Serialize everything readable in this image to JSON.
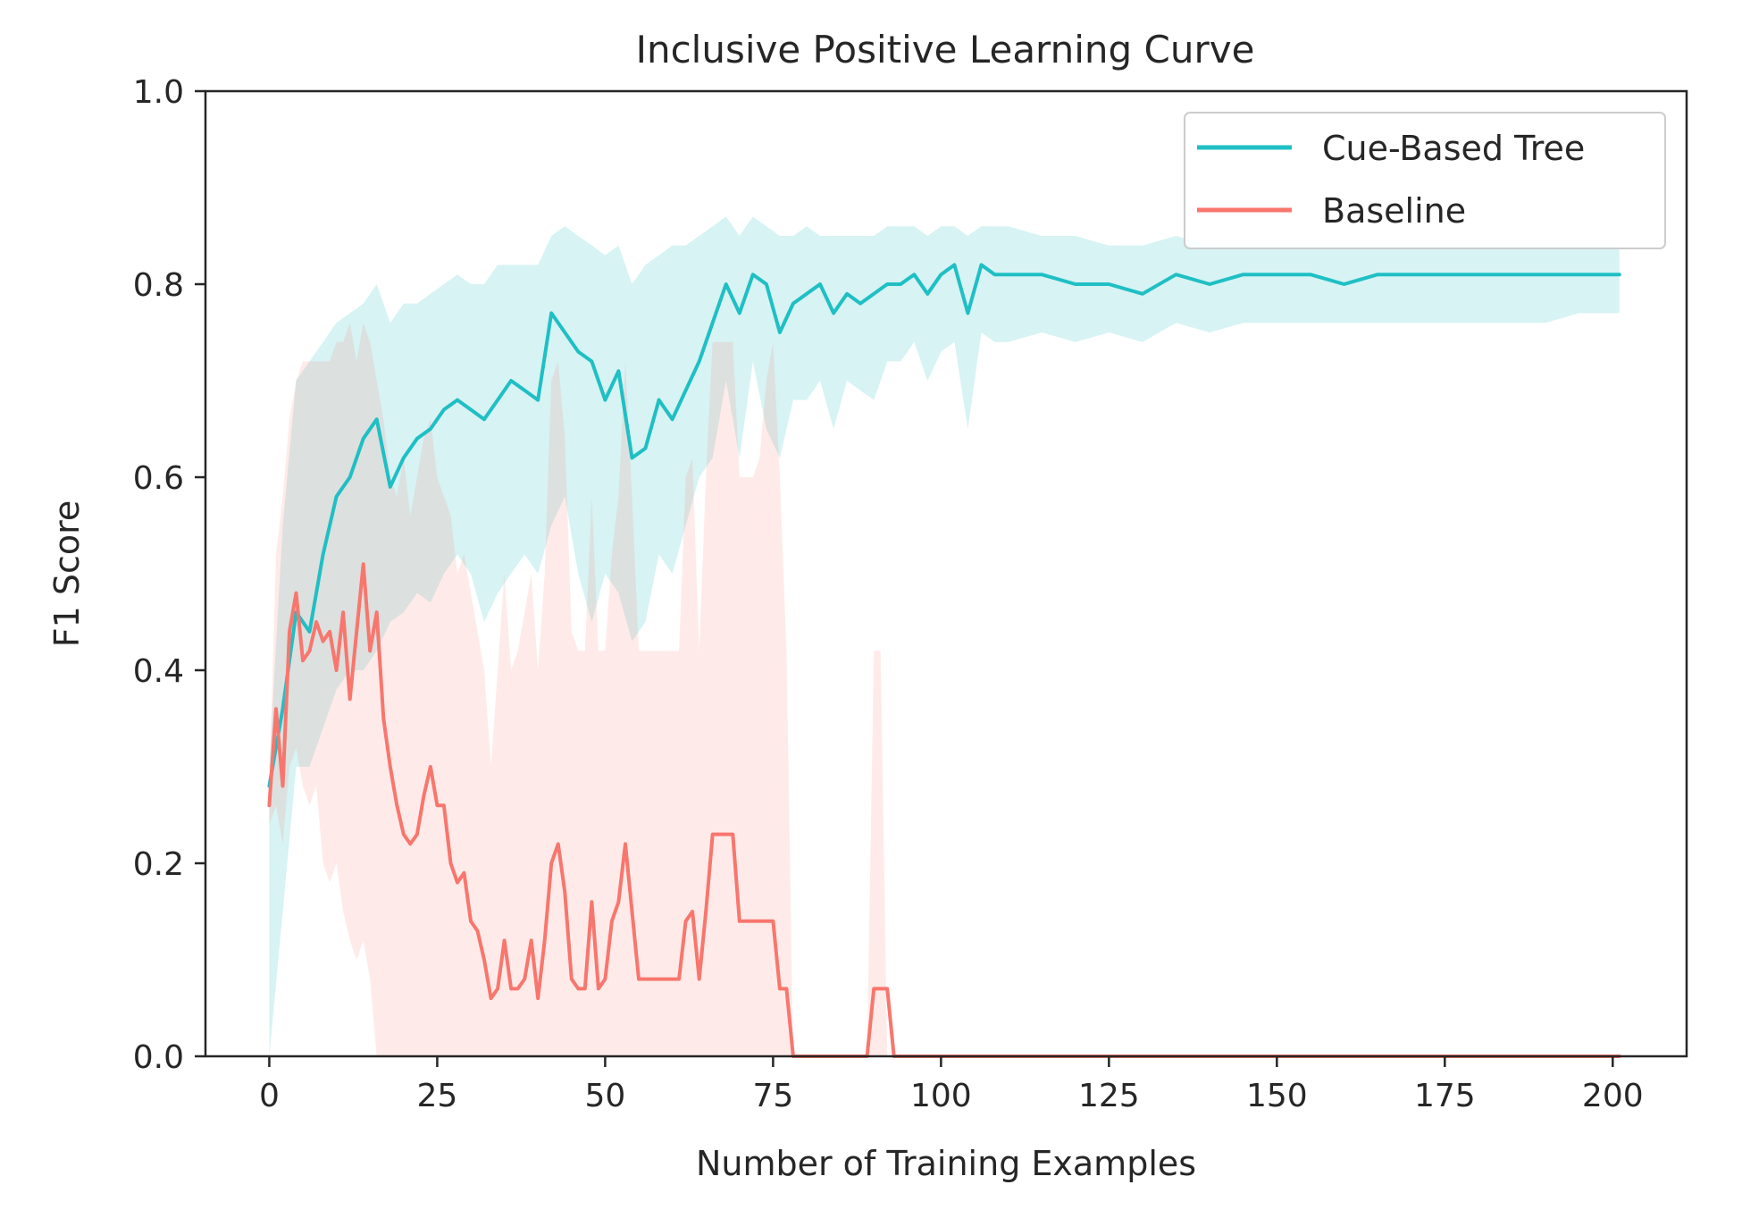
{
  "chart_data": {
    "type": "line",
    "title": "Inclusive Positive Learning Curve",
    "xlabel": "Number of Training Examples",
    "ylabel": "F1 Score",
    "xlim": [
      -9.5,
      211
    ],
    "ylim": [
      0.0,
      1.0
    ],
    "xticks": [
      0,
      25,
      50,
      75,
      100,
      125,
      150,
      175,
      200
    ],
    "yticks": [
      0.0,
      0.2,
      0.4,
      0.6,
      0.8,
      1.0
    ],
    "xtick_labels": [
      "0",
      "25",
      "50",
      "75",
      "100",
      "125",
      "150",
      "175",
      "200"
    ],
    "ytick_labels": [
      "0.0",
      "0.2",
      "0.4",
      "0.6",
      "0.8",
      "1.0"
    ],
    "grid": false,
    "legend_position": "top-right",
    "series": [
      {
        "name": "Cue-Based Tree",
        "color": "#1fbfc4",
        "band_opacity": 0.18,
        "x": [
          0,
          2,
          4,
          6,
          8,
          10,
          12,
          14,
          16,
          18,
          20,
          22,
          24,
          26,
          28,
          30,
          32,
          34,
          36,
          38,
          40,
          42,
          44,
          46,
          48,
          50,
          52,
          54,
          56,
          58,
          60,
          62,
          64,
          66,
          68,
          70,
          72,
          74,
          76,
          78,
          80,
          82,
          84,
          86,
          88,
          90,
          92,
          94,
          96,
          98,
          100,
          102,
          104,
          106,
          108,
          110,
          115,
          120,
          125,
          130,
          135,
          140,
          145,
          150,
          155,
          160,
          165,
          170,
          175,
          180,
          185,
          190,
          195,
          201
        ],
        "y": [
          0.28,
          0.36,
          0.46,
          0.44,
          0.52,
          0.58,
          0.6,
          0.64,
          0.66,
          0.59,
          0.62,
          0.64,
          0.65,
          0.67,
          0.68,
          0.67,
          0.66,
          0.68,
          0.7,
          0.69,
          0.68,
          0.77,
          0.75,
          0.73,
          0.72,
          0.68,
          0.71,
          0.62,
          0.63,
          0.68,
          0.66,
          0.69,
          0.72,
          0.76,
          0.8,
          0.77,
          0.81,
          0.8,
          0.75,
          0.78,
          0.79,
          0.8,
          0.77,
          0.79,
          0.78,
          0.79,
          0.8,
          0.8,
          0.81,
          0.79,
          0.81,
          0.82,
          0.77,
          0.82,
          0.81,
          0.81,
          0.81,
          0.8,
          0.8,
          0.79,
          0.81,
          0.8,
          0.81,
          0.81,
          0.81,
          0.8,
          0.81,
          0.81,
          0.81,
          0.81,
          0.81,
          0.81,
          0.81,
          0.81
        ],
        "lower": [
          0.0,
          0.15,
          0.3,
          0.3,
          0.34,
          0.38,
          0.4,
          0.4,
          0.42,
          0.45,
          0.46,
          0.48,
          0.47,
          0.5,
          0.52,
          0.5,
          0.45,
          0.48,
          0.5,
          0.52,
          0.5,
          0.55,
          0.58,
          0.5,
          0.45,
          0.5,
          0.48,
          0.43,
          0.45,
          0.52,
          0.5,
          0.55,
          0.6,
          0.62,
          0.7,
          0.62,
          0.72,
          0.65,
          0.62,
          0.68,
          0.68,
          0.7,
          0.65,
          0.7,
          0.69,
          0.68,
          0.72,
          0.72,
          0.74,
          0.7,
          0.73,
          0.74,
          0.65,
          0.75,
          0.74,
          0.74,
          0.75,
          0.74,
          0.75,
          0.74,
          0.76,
          0.75,
          0.76,
          0.76,
          0.76,
          0.76,
          0.76,
          0.76,
          0.76,
          0.76,
          0.76,
          0.76,
          0.77,
          0.77
        ],
        "upper": [
          0.3,
          0.55,
          0.7,
          0.72,
          0.74,
          0.76,
          0.77,
          0.78,
          0.8,
          0.76,
          0.78,
          0.78,
          0.79,
          0.8,
          0.81,
          0.8,
          0.8,
          0.82,
          0.82,
          0.82,
          0.82,
          0.85,
          0.86,
          0.85,
          0.84,
          0.83,
          0.84,
          0.8,
          0.82,
          0.83,
          0.84,
          0.84,
          0.85,
          0.86,
          0.87,
          0.85,
          0.87,
          0.86,
          0.85,
          0.85,
          0.86,
          0.85,
          0.85,
          0.85,
          0.85,
          0.85,
          0.86,
          0.86,
          0.86,
          0.85,
          0.86,
          0.86,
          0.85,
          0.86,
          0.86,
          0.86,
          0.85,
          0.85,
          0.84,
          0.84,
          0.85,
          0.84,
          0.84,
          0.84,
          0.84,
          0.84,
          0.84,
          0.84,
          0.84,
          0.84,
          0.84,
          0.84,
          0.84,
          0.84
        ]
      },
      {
        "name": "Baseline",
        "color": "#f8766d",
        "band_opacity": 0.15,
        "x": [
          0,
          1,
          2,
          3,
          4,
          5,
          6,
          7,
          8,
          9,
          10,
          11,
          12,
          13,
          14,
          15,
          16,
          17,
          18,
          19,
          20,
          21,
          22,
          23,
          24,
          25,
          26,
          27,
          28,
          29,
          30,
          31,
          32,
          33,
          34,
          35,
          36,
          37,
          38,
          39,
          40,
          41,
          42,
          43,
          44,
          45,
          46,
          47,
          48,
          49,
          50,
          51,
          52,
          53,
          54,
          55,
          56,
          57,
          58,
          59,
          60,
          61,
          62,
          63,
          64,
          65,
          66,
          67,
          68,
          69,
          70,
          71,
          72,
          73,
          74,
          75,
          76,
          77,
          78,
          80,
          85,
          89,
          90,
          91,
          92,
          93,
          95,
          100,
          120,
          150,
          175,
          201
        ],
        "y": [
          0.26,
          0.36,
          0.28,
          0.44,
          0.48,
          0.41,
          0.42,
          0.45,
          0.43,
          0.44,
          0.4,
          0.46,
          0.37,
          0.44,
          0.51,
          0.42,
          0.46,
          0.35,
          0.3,
          0.26,
          0.23,
          0.22,
          0.23,
          0.27,
          0.3,
          0.26,
          0.26,
          0.2,
          0.18,
          0.19,
          0.14,
          0.13,
          0.1,
          0.06,
          0.07,
          0.12,
          0.07,
          0.07,
          0.08,
          0.12,
          0.06,
          0.12,
          0.2,
          0.22,
          0.17,
          0.08,
          0.07,
          0.07,
          0.16,
          0.07,
          0.08,
          0.14,
          0.16,
          0.22,
          0.15,
          0.08,
          0.08,
          0.08,
          0.08,
          0.08,
          0.08,
          0.08,
          0.14,
          0.15,
          0.08,
          0.15,
          0.23,
          0.23,
          0.23,
          0.23,
          0.14,
          0.14,
          0.14,
          0.14,
          0.14,
          0.14,
          0.07,
          0.07,
          0.0,
          0.0,
          0.0,
          0.0,
          0.07,
          0.07,
          0.07,
          0.0,
          0.0,
          0.0,
          0.0,
          0.0,
          0.0,
          0.0
        ],
        "lower": [
          0.24,
          0.26,
          0.22,
          0.3,
          0.32,
          0.28,
          0.26,
          0.28,
          0.2,
          0.18,
          0.2,
          0.15,
          0.12,
          0.1,
          0.12,
          0.08,
          0.0,
          0.0,
          0.0,
          0.0,
          0.0,
          0.0,
          0.0,
          0.0,
          0.0,
          0.0,
          0.0,
          0.0,
          0.0,
          0.0,
          0.0,
          0.0,
          0.0,
          0.0,
          0.0,
          0.0,
          0.0,
          0.0,
          0.0,
          0.0,
          0.0,
          0.0,
          0.0,
          0.0,
          0.0,
          0.0,
          0.0,
          0.0,
          0.0,
          0.0,
          0.0,
          0.0,
          0.0,
          0.0,
          0.0,
          0.0,
          0.0,
          0.0,
          0.0,
          0.0,
          0.0,
          0.0,
          0.0,
          0.0,
          0.0,
          0.0,
          0.0,
          0.0,
          0.0,
          0.0,
          0.0,
          0.0,
          0.0,
          0.0,
          0.0,
          0.0,
          0.0,
          0.0,
          0.0,
          0.0,
          0.0,
          0.0,
          0.0,
          0.0,
          0.0,
          0.0,
          0.0,
          0.0,
          0.0,
          0.0,
          0.0,
          0.0
        ],
        "upper": [
          0.28,
          0.52,
          0.58,
          0.66,
          0.7,
          0.72,
          0.72,
          0.72,
          0.72,
          0.72,
          0.74,
          0.74,
          0.76,
          0.72,
          0.76,
          0.74,
          0.7,
          0.66,
          0.6,
          0.58,
          0.62,
          0.56,
          0.6,
          0.64,
          0.66,
          0.6,
          0.58,
          0.56,
          0.5,
          0.52,
          0.48,
          0.44,
          0.4,
          0.3,
          0.4,
          0.5,
          0.4,
          0.42,
          0.46,
          0.5,
          0.4,
          0.5,
          0.7,
          0.72,
          0.64,
          0.44,
          0.42,
          0.42,
          0.58,
          0.42,
          0.42,
          0.52,
          0.58,
          0.72,
          0.58,
          0.42,
          0.42,
          0.42,
          0.42,
          0.42,
          0.42,
          0.42,
          0.6,
          0.62,
          0.42,
          0.6,
          0.74,
          0.74,
          0.74,
          0.74,
          0.6,
          0.6,
          0.6,
          0.62,
          0.7,
          0.74,
          0.6,
          0.42,
          0.0,
          0.0,
          0.0,
          0.0,
          0.42,
          0.42,
          0.0,
          0.0,
          0.0,
          0.0,
          0.0,
          0.0,
          0.0,
          0.0
        ]
      }
    ]
  }
}
